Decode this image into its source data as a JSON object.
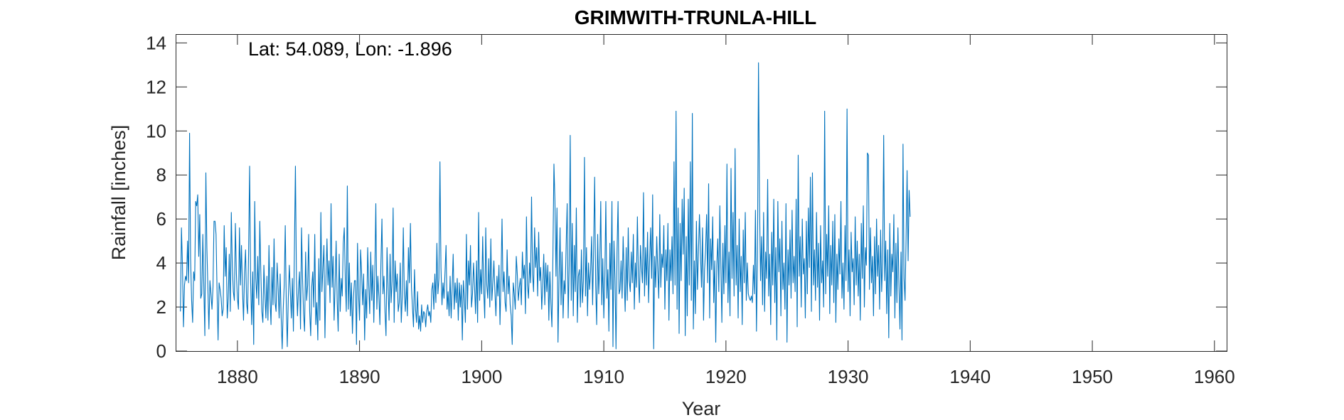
{
  "chart_data": {
    "type": "line",
    "title": "GRIMWITH-TRUNLA-HILL",
    "annotation": "Lat: 54.089, Lon: -1.896",
    "xlabel": "Year",
    "ylabel": "Rainfall [inches]",
    "xlim": [
      1875,
      1961
    ],
    "ylim": [
      0,
      14.4
    ],
    "xticks": [
      1880,
      1890,
      1900,
      1910,
      1920,
      1930,
      1940,
      1950,
      1960
    ],
    "yticks": [
      0,
      2,
      4,
      6,
      8,
      10,
      12,
      14
    ],
    "grid": false,
    "line_color": "#0072BD",
    "series": [
      {
        "x_start": 1875.333,
        "x_step": 0.0833333,
        "values": [
          1.8,
          5.6,
          3.9,
          1.1,
          3.0,
          3.4,
          3.2,
          5.0,
          3.1,
          9.9,
          4.2,
          2.3,
          1.3,
          3.6,
          3.2,
          6.8,
          6.6,
          7.1,
          4.3,
          6.2,
          2.4,
          2.6,
          5.3,
          2.9,
          0.7,
          8.1,
          4.7,
          2.8,
          1.0,
          3.2,
          2.6,
          1.9,
          2.9,
          5.9,
          5.9,
          5.3,
          2.7,
          0.5,
          3.1,
          2.8,
          2.4,
          1.6,
          1.9,
          5.7,
          3.4,
          4.7,
          1.5,
          2.4,
          4.4,
          1.8,
          6.3,
          3.8,
          2.7,
          2.3,
          5.8,
          3.5,
          2.4,
          1.9,
          5.6,
          3.0,
          4.8,
          2.8,
          1.4,
          3.6,
          4.6,
          2.2,
          1.7,
          4.5,
          8.4,
          3.1,
          1.2,
          3.6,
          0.3,
          6.8,
          3.3,
          2.4,
          4.3,
          2.1,
          5.9,
          3.6,
          1.8,
          1.3,
          3.9,
          2.6,
          1.5,
          3.4,
          1.4,
          4.8,
          2.4,
          1.2,
          3.8,
          2.1,
          5.1,
          2.2,
          1.8,
          4.0,
          2.9,
          1.5,
          3.5,
          1.5,
          0.1,
          1.9,
          3.0,
          5.7,
          2.2,
          0.2,
          2.4,
          3.9,
          2.7,
          1.5,
          3.3,
          0.9,
          4.6,
          8.4,
          3.2,
          1.6,
          2.8,
          3.6,
          1.0,
          5.6,
          3.3,
          1.7,
          0.9,
          4.5,
          2.3,
          3.0,
          5.3,
          1.8,
          0.7,
          2.9,
          3.6,
          2.0,
          5.3,
          1.2,
          2.2,
          0.5,
          4.2,
          1.4,
          6.3,
          2.7,
          3.8,
          4.8,
          0.6,
          3.3,
          5.1,
          3.0,
          4.1,
          2.2,
          6.7,
          2.9,
          4.3,
          1.4,
          3.0,
          5.0,
          2.3,
          0.9,
          4.4,
          1.8,
          3.3,
          2.5,
          4.9,
          5.6,
          3.3,
          1.8,
          7.5,
          1.9,
          4.0,
          1.6,
          3.1,
          0.8,
          2.4,
          3.2,
          3.2,
          0.3,
          4.9,
          2.6,
          1.4,
          4.6,
          3.6,
          2.1,
          3.5,
          0.5,
          2.8,
          1.5,
          4.7,
          3.0,
          1.7,
          4.5,
          2.3,
          3.9,
          1.3,
          3.5,
          6.7,
          1.9,
          3.4,
          2.5,
          1.2,
          4.0,
          6.0,
          2.6,
          3.4,
          1.8,
          0.7,
          4.7,
          2.9,
          1.4,
          4.4,
          2.2,
          3.2,
          6.5,
          1.3,
          4.1,
          2.7,
          3.5,
          1.8,
          2.2,
          4.0,
          1.3,
          2.5,
          5.6,
          2.6,
          1.8,
          3.2,
          1.6,
          4.7,
          3.1,
          5.8,
          2.9,
          2.0,
          1.1,
          3.7,
          1.9,
          1.3,
          2.7,
          1.0,
          1.6,
          0.9,
          2.1,
          1.3,
          1.8,
          1.7,
          1.1,
          1.8,
          2.1,
          1.6,
          1.8,
          1.3,
          2.8,
          3.1,
          1.9,
          3.5,
          2.2,
          4.9,
          2.6,
          3.3,
          8.6,
          3.8,
          2.1,
          3.1,
          2.4,
          3.6,
          4.8,
          1.9,
          2.7,
          1.6,
          3.4,
          1.5,
          2.9,
          4.4,
          1.9,
          3.1,
          2.2,
          3.3,
          1.4,
          3.1,
          2.0,
          3.0,
          0.5,
          3.2,
          2.4,
          1.3,
          5.3,
          1.9,
          4.1,
          3.0,
          4.8,
          2.0,
          2.6,
          4.0,
          2.9,
          1.7,
          4.1,
          1.3,
          6.3,
          2.3,
          3.7,
          2.6,
          5.2,
          2.8,
          1.5,
          5.6,
          3.0,
          2.4,
          4.2,
          2.0,
          5.1,
          2.3,
          3.1,
          4.1,
          2.7,
          1.6,
          3.4,
          2.5,
          3.9,
          1.2,
          3.3,
          6.0,
          2.7,
          3.6,
          2.2,
          1.8,
          4.6,
          2.6,
          3.4,
          2.1,
          1.6,
          0.3,
          3.1,
          2.6,
          1.9,
          4.3,
          3.5,
          2.3,
          2.9,
          3.3,
          2.1,
          4.5,
          3.3,
          3.9,
          1.7,
          6.1,
          3.0,
          2.4,
          4.0,
          3.1,
          7.0,
          3.5,
          2.7,
          5.6,
          3.8,
          4.7,
          2.5,
          5.4,
          3.2,
          3.8,
          1.9,
          3.0,
          4.4,
          2.1,
          4.0,
          2.7,
          3.9,
          1.4,
          3.6,
          2.2,
          1.1,
          4.3,
          8.5,
          6.8,
          3.4,
          6.5,
          0.4,
          3.2,
          5.6,
          2.1,
          4.5,
          1.5,
          3.2,
          2.6,
          4.8,
          6.7,
          1.5,
          3.9,
          9.8,
          2.3,
          5.8,
          1.6,
          4.8,
          2.7,
          6.5,
          1.3,
          3.4,
          3.7,
          2.0,
          4.6,
          2.2,
          3.2,
          8.8,
          2.5,
          4.7,
          1.6,
          4.0,
          2.8,
          3.6,
          5.2,
          2.1,
          4.6,
          7.9,
          3.0,
          1.2,
          5.3,
          2.6,
          3.9,
          6.8,
          2.1,
          4.2,
          1.5,
          3.4,
          6.8,
          2.4,
          3.7,
          0.9,
          4.9,
          2.8,
          6.8,
          0.2,
          5.0,
          3.3,
          0.1,
          4.5,
          6.8,
          2.6,
          2.8,
          4.1,
          2.4,
          5.2,
          3.4,
          1.8,
          4.7,
          2.3,
          5.6,
          3.2,
          2.7,
          4.5,
          3.1,
          5.3,
          1.9,
          4.0,
          2.9,
          6.1,
          3.4,
          2.2,
          4.8,
          3.8,
          3.1,
          7.2,
          2.5,
          4.7,
          3.0,
          5.4,
          2.2,
          4.1,
          5.6,
          3.3,
          7.1,
          0.1,
          4.3,
          2.9,
          5.2,
          3.7,
          2.4,
          6.2,
          2.9,
          4.4,
          3.8,
          5.7,
          1.9,
          4.6,
          3.2,
          5.8,
          1.4,
          4.6,
          3.2,
          5.2,
          2.6,
          8.6,
          3.0,
          10.9,
          1.9,
          6.5,
          0.8,
          5.8,
          3.2,
          6.9,
          4.4,
          7.4,
          0.7,
          5.2,
          1.6,
          6.9,
          3.0,
          8.6,
          2.3,
          10.8,
          1.0,
          4.1,
          1.7,
          5.9,
          2.8,
          4.5,
          6.2,
          4.4,
          2.9,
          5.6,
          1.4,
          3.7,
          4.6,
          6.2,
          3.1,
          7.6,
          1.5,
          5.1,
          3.7,
          6.1,
          2.2,
          4.1,
          0.4,
          3.9,
          5.1,
          2.7,
          6.6,
          3.9,
          1.3,
          4.9,
          2.6,
          5.7,
          3.1,
          8.5,
          2.2,
          4.5,
          1.6,
          8.3,
          3.3,
          6.3,
          2.5,
          9.2,
          3.0,
          4.8,
          1.5,
          6.0,
          2.7,
          4.3,
          1.2,
          5.5,
          3.1,
          6.3,
          2.3,
          4.0,
          2.6,
          2.4,
          2.3,
          2.5,
          2.2,
          3.9,
          2.6,
          6.4,
          0.9,
          4.3,
          13.1,
          6.8,
          3.2,
          5.2,
          2.1,
          6.3,
          1.8,
          4.5,
          3.3,
          7.8,
          2.5,
          4.4,
          1.2,
          5.4,
          3.0,
          6.9,
          2.2,
          4.7,
          0.5,
          6.8,
          3.6,
          5.1,
          1.6,
          5.9,
          2.8,
          4.0,
          1.9,
          6.7,
          0.4,
          4.6,
          3.0,
          5.5,
          2.4,
          6.4,
          3.1,
          4.3,
          2.7,
          6.9,
          1.1,
          8.9,
          3.4,
          5.2,
          2.0,
          6.0,
          3.5,
          4.2,
          1.5,
          5.9,
          2.6,
          6.5,
          3.8,
          7.9,
          1.8,
          8.1,
          3.0,
          4.6,
          2.3,
          6.3,
          2.9,
          4.9,
          1.4,
          5.7,
          3.1,
          4.1,
          2.0,
          10.9,
          2.6,
          5.3,
          3.4,
          6.6,
          1.7,
          4.8,
          3.0,
          5.9,
          2.2,
          6.2,
          1.3,
          4.4,
          2.8,
          5.1,
          3.5,
          6.8,
          2.4,
          4.0,
          1.9,
          5.7,
          3.2,
          11.0,
          2.7,
          4.6,
          1.6,
          5.4,
          3.6,
          4.2,
          2.1,
          6.1,
          3.0,
          5.0,
          2.5,
          4.4,
          1.4,
          5.8,
          3.3,
          6.6,
          2.0,
          4.7,
          3.9,
          9.0,
          8.9,
          2.8,
          5.6,
          3.1,
          4.3,
          1.6,
          5.2,
          2.6,
          6.0,
          3.4,
          4.8,
          1.9,
          5.5,
          2.7,
          4.1,
          9.8,
          3.2,
          5.0,
          1.7,
          4.6,
          0.6,
          5.8,
          2.5,
          4.4,
          3.6,
          6.2,
          1.5,
          4.9,
          2.2,
          5.6,
          3.0,
          1.0,
          4.5,
          0.5,
          9.4,
          3.3,
          2.3,
          5.1,
          8.2,
          4.1,
          7.3,
          6.1
        ]
      }
    ]
  }
}
